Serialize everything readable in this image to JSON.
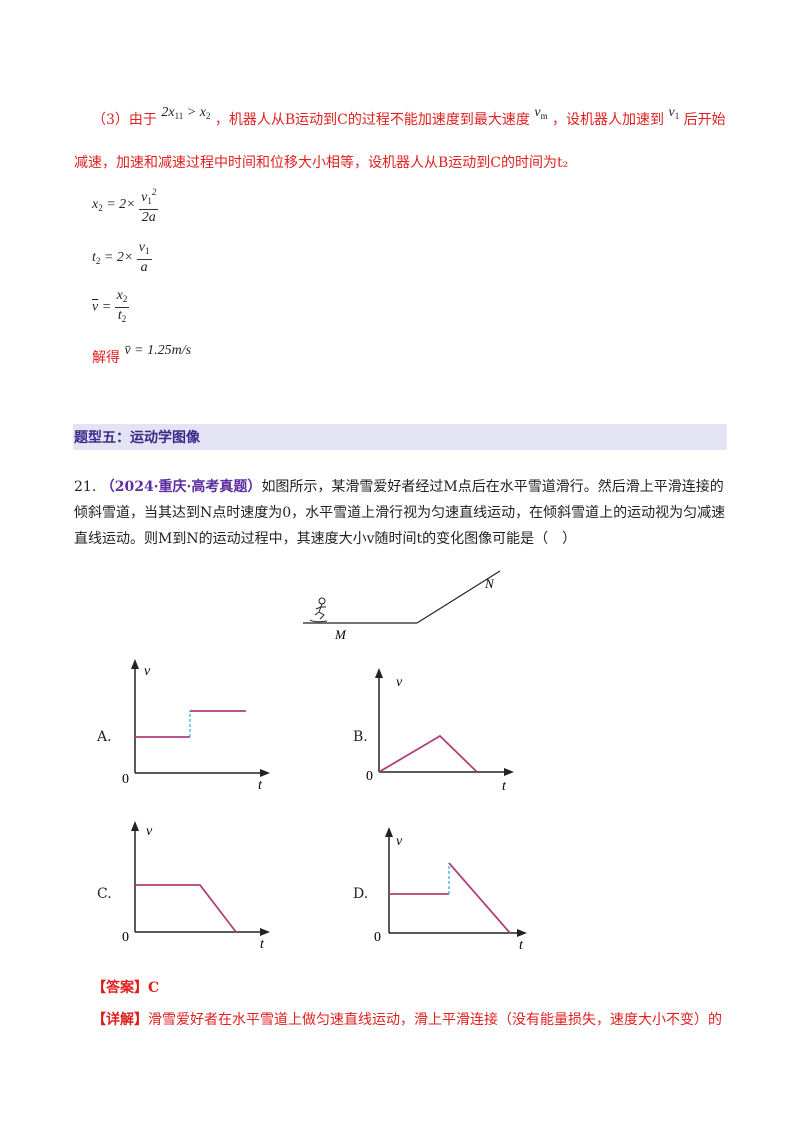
{
  "part3": {
    "label": "（3）由于",
    "cond": "2x₁₁ > x₂",
    "text_a": "，机器人从B运动到C的过程不能加速度到最大速度",
    "vm": "v_m",
    "text_b": "，设机器人加速到",
    "v1": "v₁",
    "text_c": "后开始",
    "line2": "减速，加速和减速过程中时间和位移大小相等，设机器人从B运动到C的时间为t₂"
  },
  "equations": {
    "eq1_lhs": "x₂ = 2×",
    "eq1_num": "v₁²",
    "eq1_den": "2a",
    "eq2_lhs": "t₂ = 2×",
    "eq2_num": "v₁",
    "eq2_den": "a",
    "eq3_lhs": "v̄ =",
    "eq3_num": "x₂",
    "eq3_den": "t₂",
    "solve_label": "解得",
    "solve_value": "v̄ = 1.25m/s"
  },
  "section": {
    "title": "题型五：运动学图像"
  },
  "question": {
    "number": "21.",
    "source": "（2024·重庆·高考真题）",
    "text": "如图所示，某滑雪爱好者经过M点后在水平雪道滑行。然后滑上平滑连接的倾斜雪道，当其达到N点时速度为0，水平雪道上滑行视为匀速直线运动，在倾斜雪道上的运动视为匀减速直线运动。则M到N的运动过程中，其速度大小v随时间t的变化图像可能是（　）"
  },
  "figure": {
    "label_M": "M",
    "label_N": "N"
  },
  "options": [
    {
      "letter": "A.",
      "ylabel": "v",
      "xlabel": "t",
      "origin": "0"
    },
    {
      "letter": "B.",
      "ylabel": "v",
      "xlabel": "t",
      "origin": "0"
    },
    {
      "letter": "C.",
      "ylabel": "v",
      "xlabel": "t",
      "origin": "0"
    },
    {
      "letter": "D.",
      "ylabel": "v",
      "xlabel": "t",
      "origin": "0"
    }
  ],
  "answer": {
    "label": "【答案】",
    "value": "C"
  },
  "detail": {
    "label": "【详解】",
    "text": "滑雪爱好者在水平雪道上做匀速直线运动，滑上平滑连接（没有能量损失，速度大小不变）的"
  },
  "colors": {
    "accent_red": "#e02020",
    "graph_line": "#b04078",
    "dashed": "#3ab0e0",
    "section_bg": "#e3e3f3",
    "section_text": "#3b2a8a"
  }
}
